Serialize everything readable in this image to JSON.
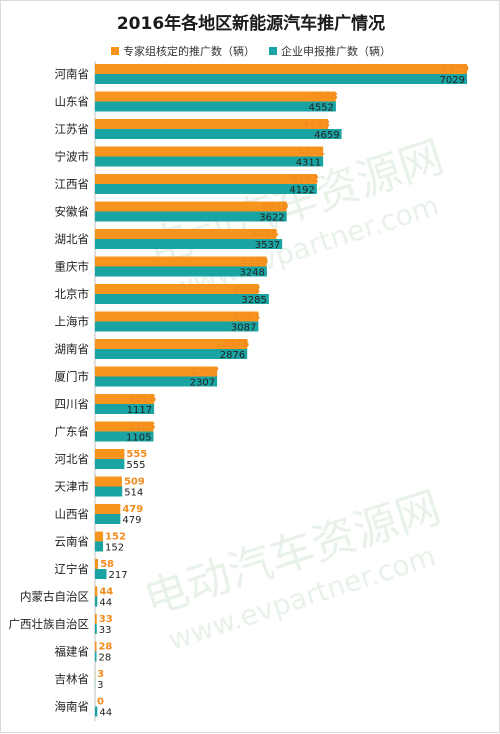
{
  "chart_data": {
    "type": "bar",
    "orientation": "horizontal",
    "title": "2016年各地区新能源汽车推广情况",
    "categories": [
      "河南省",
      "山东省",
      "江苏省",
      "宁波市",
      "江西省",
      "安徽省",
      "湖北省",
      "重庆市",
      "北京市",
      "上海市",
      "湖南省",
      "厦门市",
      "四川省",
      "广东省",
      "河北省",
      "天津市",
      "山西省",
      "云南省",
      "辽宁省",
      "内蒙古自治区",
      "广西壮族自治区",
      "福建省",
      "吉林省",
      "海南省"
    ],
    "series": [
      {
        "name": "专家组核定的推广数（辆）",
        "color": "#f7941d",
        "values": [
          7029,
          4548,
          4403,
          4311,
          4192,
          3619,
          3426,
          3239,
          3092,
          3084,
          2876,
          2307,
          1116,
          1105,
          555,
          509,
          479,
          152,
          58,
          44,
          33,
          28,
          3,
          0
        ]
      },
      {
        "name": "企业申报推广数（辆）",
        "color": "#1aa3a3",
        "values": [
          7029,
          4552,
          4659,
          4311,
          4192,
          3622,
          3537,
          3248,
          3285,
          3087,
          2876,
          2307,
          1117,
          1105,
          555,
          514,
          479,
          152,
          217,
          44,
          33,
          28,
          3,
          44
        ]
      }
    ],
    "xlim": [
      0,
      7029
    ],
    "legend_position": "top",
    "grid": false
  },
  "watermark": {
    "text_cn": "电动汽车资源网",
    "text_url": "www.evpartner.com"
  }
}
